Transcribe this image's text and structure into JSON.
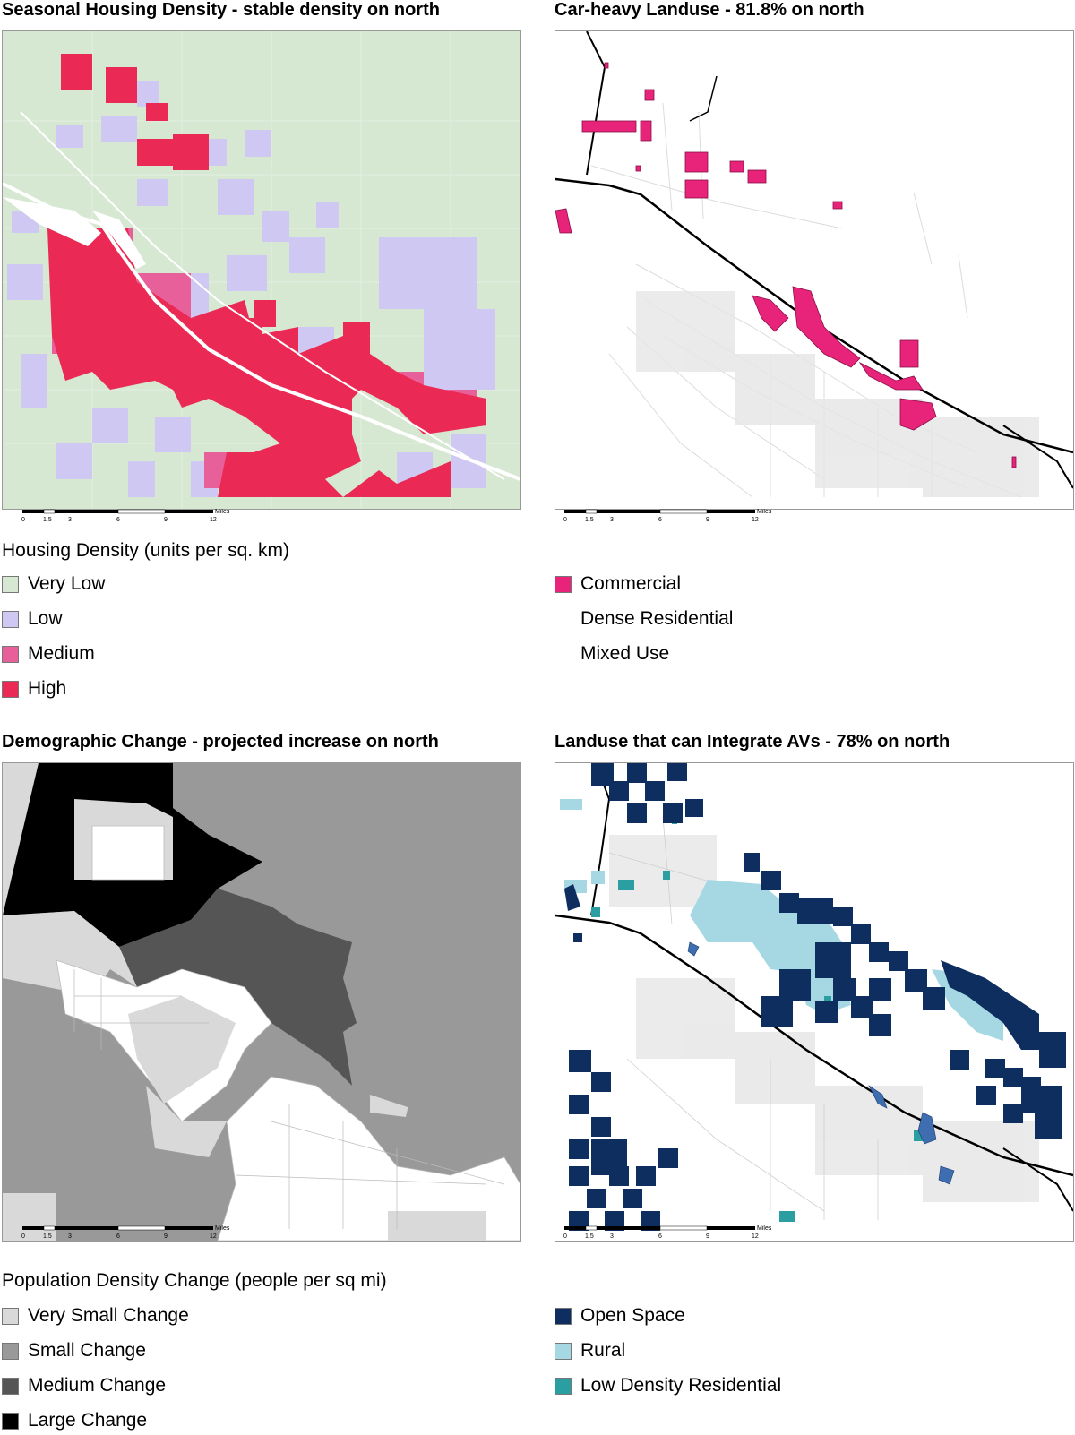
{
  "panels": [
    {
      "title": "Seasonal Housing Density - stable density on north",
      "legend_title": "Housing Density (units per sq. km)",
      "legend": [
        {
          "label": "Very Low",
          "color": "#d6e8d2"
        },
        {
          "label": "Low",
          "color": "#cfc8f2"
        },
        {
          "label": "Medium",
          "color": "#e8609a"
        },
        {
          "label": "High",
          "color": "#ea2a55"
        }
      ]
    },
    {
      "title": "Car-heavy Landuse - 81.8% on north",
      "legend_title": "",
      "legend": [
        {
          "label": "Commercial",
          "color": "#e8237a"
        },
        {
          "label": "Dense Residential",
          "color": ""
        },
        {
          "label": "Mixed Use",
          "color": ""
        }
      ]
    },
    {
      "title": "Demographic Change - projected increase on north",
      "legend_title": "Population Density Change (people per sq mi)",
      "legend": [
        {
          "label": "Very Small Change",
          "color": "#d9d9d9"
        },
        {
          "label": "Small Change",
          "color": "#999999"
        },
        {
          "label": "Medium Change",
          "color": "#555555"
        },
        {
          "label": "Large Change",
          "color": "#000000"
        }
      ]
    },
    {
      "title": "Landuse that can Integrate AVs - 78% on north",
      "legend_title": "",
      "legend": [
        {
          "label": "Open Space",
          "color": "#0d2e5e"
        },
        {
          "label": "Rural",
          "color": "#a6d8e4"
        },
        {
          "label": "Low Density Residential",
          "color": "#2a9ea0"
        }
      ]
    }
  ],
  "scalebar": {
    "unit": "Miles",
    "ticks": [
      "0",
      "1.5",
      "3",
      "6",
      "9",
      "12"
    ]
  }
}
